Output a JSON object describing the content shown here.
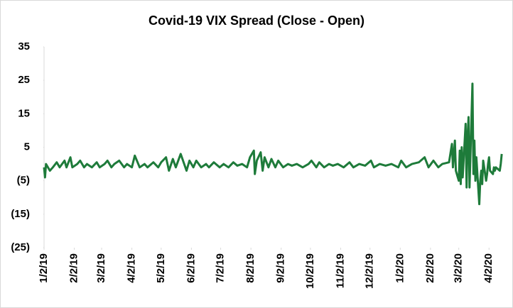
{
  "chart_data": {
    "type": "line",
    "title": "Covid-19 VIX Spread (Close - Open)",
    "x": [
      "1/2/19",
      "1/3/19",
      "1/4/19",
      "1/8/19",
      "1/11/19",
      "1/15/19",
      "1/18/19",
      "1/23/19",
      "1/25/19",
      "1/29/19",
      "1/31/19",
      "2/5/19",
      "2/8/19",
      "2/12/19",
      "2/15/19",
      "2/20/19",
      "2/25/19",
      "2/28/19",
      "3/5/19",
      "3/8/19",
      "3/12/19",
      "3/15/19",
      "3/20/19",
      "3/25/19",
      "3/28/19",
      "4/2/19",
      "4/5/19",
      "4/10/19",
      "4/15/19",
      "4/18/19",
      "4/24/19",
      "4/29/19",
      "5/2/19",
      "5/7/19",
      "5/10/19",
      "5/14/19",
      "5/17/19",
      "5/22/19",
      "5/28/19",
      "5/31/19",
      "6/4/19",
      "6/7/19",
      "6/12/19",
      "6/17/19",
      "6/20/19",
      "6/25/19",
      "7/1/19",
      "7/5/19",
      "7/10/19",
      "7/15/19",
      "7/19/19",
      "7/24/19",
      "7/29/19",
      "8/1/19",
      "8/5/19",
      "8/6/19",
      "8/8/19",
      "8/12/19",
      "8/14/19",
      "8/16/19",
      "8/20/19",
      "8/23/19",
      "8/27/19",
      "8/30/19",
      "9/4/19",
      "9/9/19",
      "9/13/19",
      "9/18/19",
      "9/24/19",
      "9/30/19",
      "10/3/19",
      "10/8/19",
      "10/11/19",
      "10/16/19",
      "10/21/19",
      "10/25/19",
      "10/30/19",
      "11/5/19",
      "11/11/19",
      "11/15/19",
      "11/21/19",
      "11/27/19",
      "12/3/19",
      "12/6/19",
      "12/12/19",
      "12/18/19",
      "12/24/19",
      "12/31/19",
      "1/3/20",
      "1/8/20",
      "1/14/20",
      "1/21/20",
      "1/27/20",
      "1/31/20",
      "2/5/20",
      "2/10/20",
      "2/14/20",
      "2/21/20",
      "2/24/20",
      "2/25/20",
      "2/27/20",
      "2/28/20",
      "3/2/20",
      "3/3/20",
      "3/4/20",
      "3/5/20",
      "3/6/20",
      "3/9/20",
      "3/10/20",
      "3/11/20",
      "3/12/20",
      "3/13/20",
      "3/16/20",
      "3/17/20",
      "3/18/20",
      "3/19/20",
      "3/20/20",
      "3/23/20",
      "3/24/20",
      "3/25/20",
      "3/26/20",
      "3/27/20",
      "3/30/20",
      "3/31/20",
      "4/1/20",
      "4/2/20",
      "4/3/20",
      "4/6/20",
      "4/7/20",
      "4/8/20",
      "4/9/20",
      "4/13/20",
      "4/14/20",
      "4/15/20"
    ],
    "series": [
      {
        "color": "#1e7b3a",
        "values": [
          -1,
          -4,
          0,
          -2,
          -1,
          0.5,
          -1,
          1,
          -1,
          2,
          -1,
          0,
          1,
          -1,
          0,
          -1,
          0.5,
          -1,
          0,
          1,
          -1,
          0,
          1,
          -1,
          0,
          -1,
          2.5,
          -1,
          0,
          -1,
          0.5,
          -1,
          0.5,
          2,
          -2,
          1.5,
          -1,
          3,
          -2,
          1,
          -1,
          1,
          -1,
          0,
          -1,
          0.5,
          -1,
          0,
          -1,
          0.5,
          -0.5,
          0,
          -1,
          2,
          4,
          -3,
          1,
          3.5,
          -2,
          2,
          -1,
          1.5,
          -1,
          1,
          -1,
          0,
          -0.5,
          0,
          -1,
          0,
          1,
          -1,
          0.5,
          -1,
          0,
          -0.5,
          0,
          -1,
          0.5,
          -1,
          0,
          -0.5,
          1,
          -1,
          0,
          -0.5,
          0,
          -1,
          1,
          -1,
          0,
          0.5,
          2,
          -1,
          1,
          -1,
          0,
          0.5,
          6,
          -1,
          7,
          -2,
          -5,
          4,
          -6,
          5,
          -4,
          12,
          -7,
          8,
          14,
          -7,
          24,
          -3,
          7,
          -5,
          2,
          -12,
          -5,
          -2,
          -6,
          1,
          -5,
          -3,
          0,
          2,
          -2,
          -3,
          -1,
          -2,
          -1,
          -2,
          0,
          3
        ]
      }
    ],
    "xlim": [
      "1/2/19",
      "4/20/20"
    ],
    "xticks": [
      "1/2/19",
      "2/2/19",
      "3/2/19",
      "4/2/19",
      "5/2/19",
      "6/2/19",
      "7/2/19",
      "8/2/19",
      "9/2/19",
      "10/2/19",
      "11/2/19",
      "12/2/19",
      "1/2/20",
      "2/2/20",
      "3/2/20",
      "4/2/20"
    ],
    "ylim": [
      -25,
      35
    ],
    "yticks": [
      {
        "value": -25,
        "label": "(25)"
      },
      {
        "value": -15,
        "label": "(15)"
      },
      {
        "value": -5,
        "label": "(5)"
      },
      5,
      15,
      25,
      35
    ]
  }
}
